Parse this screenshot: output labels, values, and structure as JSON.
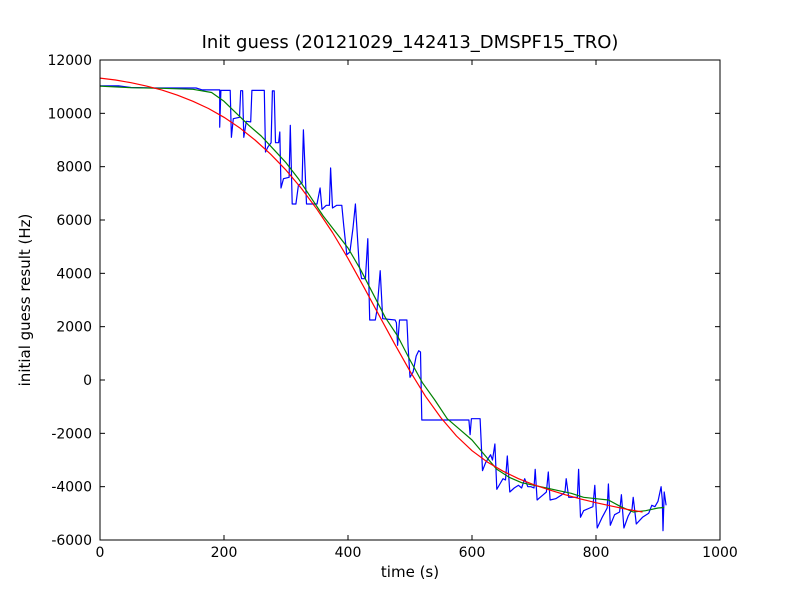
{
  "chart_data": {
    "type": "line",
    "title": "Init guess (20121029_142413_DMSPF15_TRO)",
    "xlabel": "time (s)",
    "ylabel": "initial guess result (Hz)",
    "xlim": [
      0,
      1000
    ],
    "ylim": [
      -6000,
      12000
    ],
    "xticks": [
      0,
      200,
      400,
      600,
      800,
      1000
    ],
    "yticks": [
      -6000,
      -4000,
      -2000,
      0,
      2000,
      4000,
      6000,
      8000,
      10000,
      12000
    ],
    "grid": false,
    "series": [
      {
        "color": "#0000ff",
        "points": [
          [
            0,
            11030
          ],
          [
            30,
            11030
          ],
          [
            50,
            10970
          ],
          [
            90,
            10950
          ],
          [
            155,
            10950
          ],
          [
            165,
            10880
          ],
          [
            190,
            10880
          ],
          [
            193,
            10880
          ],
          [
            193,
            9480
          ],
          [
            195,
            10860
          ],
          [
            210,
            10860
          ],
          [
            212,
            9100
          ],
          [
            215,
            9800
          ],
          [
            225,
            9850
          ],
          [
            227,
            10850
          ],
          [
            230,
            10850
          ],
          [
            232,
            9100
          ],
          [
            236,
            9700
          ],
          [
            243,
            9680
          ],
          [
            245,
            10860
          ],
          [
            265,
            10860
          ],
          [
            267,
            8550
          ],
          [
            271,
            8750
          ],
          [
            276,
            8900
          ],
          [
            278,
            10840
          ],
          [
            281,
            10840
          ],
          [
            283,
            8900
          ],
          [
            288,
            8900
          ],
          [
            290,
            9300
          ],
          [
            292,
            7200
          ],
          [
            296,
            7550
          ],
          [
            305,
            7600
          ],
          [
            307,
            9550
          ],
          [
            310,
            6600
          ],
          [
            316,
            6600
          ],
          [
            320,
            7300
          ],
          [
            326,
            7400
          ],
          [
            328,
            9380
          ],
          [
            333,
            6600
          ],
          [
            350,
            6600
          ],
          [
            355,
            7200
          ],
          [
            358,
            6400
          ],
          [
            365,
            6550
          ],
          [
            370,
            6550
          ],
          [
            372,
            7950
          ],
          [
            375,
            6450
          ],
          [
            382,
            6550
          ],
          [
            390,
            6550
          ],
          [
            393,
            5800
          ],
          [
            398,
            4700
          ],
          [
            403,
            4800
          ],
          [
            408,
            5700
          ],
          [
            412,
            6600
          ],
          [
            418,
            4300
          ],
          [
            422,
            3800
          ],
          [
            428,
            3800
          ],
          [
            432,
            5300
          ],
          [
            435,
            2250
          ],
          [
            444,
            2250
          ],
          [
            447,
            2650
          ],
          [
            452,
            4100
          ],
          [
            456,
            2300
          ],
          [
            476,
            2250
          ],
          [
            478,
            2150
          ],
          [
            480,
            1300
          ],
          [
            483,
            2250
          ],
          [
            495,
            2250
          ],
          [
            497,
            1250
          ],
          [
            500,
            100
          ],
          [
            505,
            300
          ],
          [
            510,
            900
          ],
          [
            514,
            1100
          ],
          [
            517,
            1050
          ],
          [
            519,
            -1500
          ],
          [
            595,
            -1500
          ],
          [
            597,
            -2050
          ],
          [
            599,
            -1450
          ],
          [
            613,
            -1450
          ],
          [
            617,
            -3400
          ],
          [
            622,
            -3100
          ],
          [
            630,
            -2800
          ],
          [
            633,
            -3000
          ],
          [
            637,
            -2400
          ],
          [
            640,
            -4100
          ],
          [
            645,
            -3900
          ],
          [
            650,
            -3700
          ],
          [
            654,
            -3750
          ],
          [
            657,
            -2850
          ],
          [
            661,
            -4200
          ],
          [
            668,
            -4050
          ],
          [
            675,
            -3950
          ],
          [
            680,
            -4050
          ],
          [
            685,
            -3700
          ],
          [
            690,
            -4000
          ],
          [
            695,
            -4000
          ],
          [
            700,
            -4050
          ],
          [
            702,
            -3350
          ],
          [
            705,
            -4500
          ],
          [
            710,
            -4400
          ],
          [
            715,
            -4300
          ],
          [
            720,
            -4200
          ],
          [
            723,
            -3450
          ],
          [
            726,
            -4500
          ],
          [
            735,
            -4450
          ],
          [
            745,
            -4300
          ],
          [
            750,
            -4200
          ],
          [
            752,
            -3700
          ],
          [
            756,
            -4400
          ],
          [
            765,
            -4400
          ],
          [
            770,
            -4400
          ],
          [
            772,
            -3350
          ],
          [
            775,
            -5150
          ],
          [
            780,
            -4900
          ],
          [
            790,
            -4800
          ],
          [
            795,
            -4750
          ],
          [
            798,
            -3950
          ],
          [
            802,
            -5550
          ],
          [
            810,
            -5150
          ],
          [
            818,
            -4800
          ],
          [
            820,
            -3900
          ],
          [
            823,
            -5450
          ],
          [
            830,
            -5050
          ],
          [
            838,
            -4950
          ],
          [
            841,
            -4300
          ],
          [
            845,
            -5550
          ],
          [
            852,
            -5100
          ],
          [
            858,
            -4850
          ],
          [
            860,
            -4400
          ],
          [
            865,
            -5400
          ],
          [
            875,
            -5150
          ],
          [
            885,
            -5000
          ],
          [
            890,
            -4700
          ],
          [
            895,
            -4750
          ],
          [
            900,
            -4550
          ],
          [
            905,
            -4000
          ],
          [
            907,
            -4500
          ],
          [
            908,
            -5650
          ],
          [
            910,
            -4200
          ],
          [
            913,
            -4700
          ]
        ]
      },
      {
        "color": "#008000",
        "points": [
          [
            0,
            11020
          ],
          [
            50,
            10960
          ],
          [
            100,
            10940
          ],
          [
            150,
            10900
          ],
          [
            180,
            10780
          ],
          [
            200,
            10450
          ],
          [
            220,
            10000
          ],
          [
            240,
            9550
          ],
          [
            260,
            9150
          ],
          [
            280,
            8650
          ],
          [
            300,
            8150
          ],
          [
            320,
            7550
          ],
          [
            340,
            6850
          ],
          [
            360,
            6150
          ],
          [
            380,
            5550
          ],
          [
            400,
            4950
          ],
          [
            420,
            4150
          ],
          [
            440,
            3250
          ],
          [
            460,
            2350
          ],
          [
            480,
            1650
          ],
          [
            500,
            750
          ],
          [
            520,
            -100
          ],
          [
            540,
            -750
          ],
          [
            560,
            -1450
          ],
          [
            580,
            -1850
          ],
          [
            600,
            -2250
          ],
          [
            620,
            -2800
          ],
          [
            640,
            -3350
          ],
          [
            660,
            -3650
          ],
          [
            680,
            -3850
          ],
          [
            700,
            -3950
          ],
          [
            720,
            -4050
          ],
          [
            740,
            -4150
          ],
          [
            760,
            -4250
          ],
          [
            780,
            -4400
          ],
          [
            800,
            -4450
          ],
          [
            820,
            -4500
          ],
          [
            840,
            -4750
          ],
          [
            860,
            -4950
          ],
          [
            880,
            -4900
          ],
          [
            900,
            -4800
          ],
          [
            910,
            -4780
          ]
        ]
      },
      {
        "color": "#ff0000",
        "points": [
          [
            0,
            11320
          ],
          [
            25,
            11250
          ],
          [
            50,
            11150
          ],
          [
            75,
            11020
          ],
          [
            100,
            10870
          ],
          [
            125,
            10680
          ],
          [
            150,
            10450
          ],
          [
            175,
            10180
          ],
          [
            200,
            9850
          ],
          [
            225,
            9460
          ],
          [
            250,
            9000
          ],
          [
            275,
            8470
          ],
          [
            300,
            7870
          ],
          [
            325,
            7180
          ],
          [
            350,
            6400
          ],
          [
            375,
            5530
          ],
          [
            400,
            4560
          ],
          [
            425,
            3510
          ],
          [
            450,
            2430
          ],
          [
            475,
            1360
          ],
          [
            500,
            330
          ],
          [
            525,
            -610
          ],
          [
            550,
            -1420
          ],
          [
            575,
            -2100
          ],
          [
            600,
            -2650
          ],
          [
            625,
            -3080
          ],
          [
            650,
            -3420
          ],
          [
            675,
            -3700
          ],
          [
            700,
            -3930
          ],
          [
            725,
            -4120
          ],
          [
            750,
            -4300
          ],
          [
            775,
            -4460
          ],
          [
            800,
            -4600
          ],
          [
            825,
            -4730
          ],
          [
            850,
            -4850
          ],
          [
            875,
            -4950
          ]
        ]
      }
    ]
  }
}
